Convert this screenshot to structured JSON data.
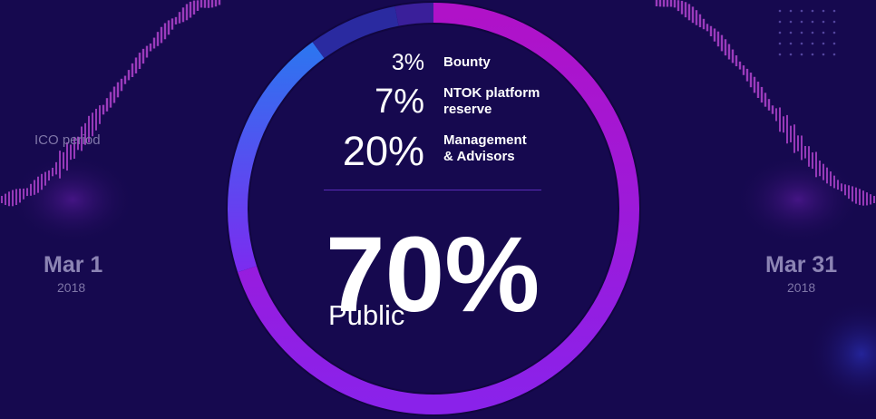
{
  "chart_data": {
    "type": "pie",
    "style": "donut",
    "categories": [
      "Public",
      "Management & Advisors",
      "NTOK platform reserve",
      "Bounty"
    ],
    "values": [
      70,
      20,
      7,
      3
    ],
    "value_labels": [
      "70%",
      "20%",
      "7%",
      "3%"
    ],
    "label_lines": [
      [
        "Public"
      ],
      [
        "Management",
        "& Advisors"
      ],
      [
        "NTOK platform",
        "reserve"
      ],
      [
        "Bounty"
      ]
    ],
    "title": "",
    "legend": "inside"
  },
  "timeline": {
    "caption": "ICO period",
    "start": {
      "date": "Mar 1",
      "year": "2018"
    },
    "end": {
      "date": "Mar 31",
      "year": "2018"
    }
  },
  "colors": {
    "background": "#16094f",
    "ring_track": "#110640",
    "public_start": "#b012c8",
    "public_end": "#8a22ea",
    "management_start": "#7b2cf0",
    "management_end": "#2e74f0",
    "reserve": "#2a2aa0",
    "bounty": "#3a1f9a",
    "wave": "#c84ce0"
  }
}
